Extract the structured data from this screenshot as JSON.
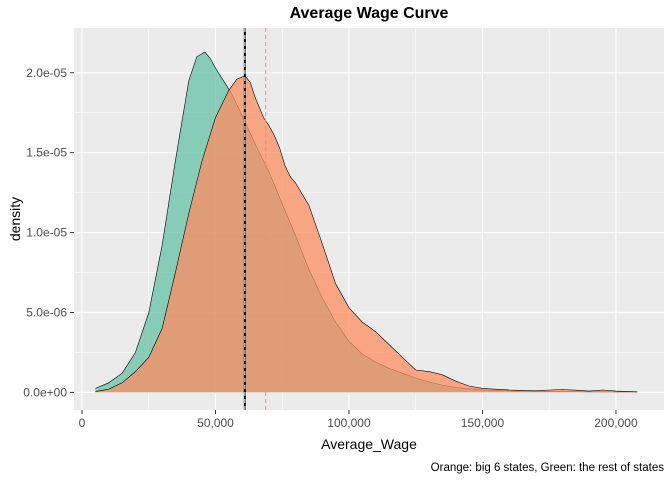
{
  "chart_data": {
    "type": "area",
    "title": "Average Wage Curve",
    "xlabel": "Average_Wage",
    "ylabel": "density",
    "caption": "Orange: big 6 states, Green: the rest of states",
    "xlim": [
      -3000,
      218000
    ],
    "ylim": [
      -1.1e-06,
      2.28e-05
    ],
    "x_ticks": [
      0,
      50000,
      100000,
      150000,
      200000
    ],
    "x_tick_labels": [
      "0",
      "50,000",
      "100,000",
      "150,000",
      "200,000"
    ],
    "y_ticks": [
      0,
      5e-06,
      1e-05,
      1.5e-05,
      2e-05
    ],
    "y_tick_labels": [
      "0.0e+00",
      "5.0e-06",
      "1.0e-05",
      "1.5e-05",
      "2.0e-05"
    ],
    "grid": true,
    "series": [
      {
        "color": "#66c2a5",
        "x": [
          5000,
          10000,
          15000,
          20000,
          25000,
          30000,
          35000,
          40000,
          43000,
          46000,
          48000,
          50000,
          53000,
          56000,
          60000,
          65000,
          70000,
          75000,
          80000,
          85000,
          90000,
          95000,
          100000,
          105000,
          110000,
          115000,
          120000,
          125000,
          130000,
          135000,
          140000,
          150000,
          160000,
          170000,
          180000,
          190000,
          200000,
          208000
        ],
        "y": [
          2.5e-07,
          6e-07,
          1.2e-06,
          2.5e-06,
          5e-06,
          9.2e-06,
          1.45e-05,
          1.95e-05,
          2.1e-05,
          2.13e-05,
          2.09e-05,
          2.03e-05,
          1.95e-05,
          1.87e-05,
          1.73e-05,
          1.55e-05,
          1.38e-05,
          1.18e-05,
          9.8e-06,
          7.7e-06,
          5.9e-06,
          4.4e-06,
          3.2e-06,
          2.4e-06,
          1.9e-06,
          1.5e-06,
          1.2e-06,
          9e-07,
          6.5e-07,
          4.5e-07,
          3e-07,
          1.6e-07,
          1e-07,
          7e-08,
          5e-08,
          4e-08,
          3e-08,
          3e-08
        ]
      },
      {
        "color": "#fc8d62",
        "x": [
          5000,
          10000,
          15000,
          20000,
          25000,
          30000,
          35000,
          40000,
          45000,
          50000,
          55000,
          58000,
          61000,
          63000,
          65000,
          68000,
          70000,
          72000,
          74000,
          76000,
          78000,
          80000,
          85000,
          90000,
          95000,
          100000,
          105000,
          110000,
          115000,
          120000,
          125000,
          130000,
          135000,
          140000,
          145000,
          150000,
          160000,
          170000,
          175000,
          180000,
          185000,
          190000,
          195000,
          200000,
          208000
        ],
        "y": [
          5e-08,
          2e-07,
          6e-07,
          1.3e-06,
          2.2e-06,
          4e-06,
          7.5e-06,
          1.12e-05,
          1.45e-05,
          1.72e-05,
          1.89e-05,
          1.96e-05,
          1.98e-05,
          1.94e-05,
          1.84e-05,
          1.72e-05,
          1.67e-05,
          1.61e-05,
          1.53e-05,
          1.42e-05,
          1.35e-05,
          1.31e-05,
          1.17e-05,
          9.3e-06,
          6.8e-06,
          5.3e-06,
          4.4e-06,
          3.8e-06,
          3e-06,
          2.2e-06,
          1.4e-06,
          1.3e-06,
          1.1e-06,
          7e-07,
          4e-07,
          2.5e-07,
          1.5e-07,
          1e-07,
          1.5e-07,
          1.8e-07,
          1.4e-07,
          8e-08,
          1.5e-07,
          8e-08,
          3e-08
        ]
      }
    ],
    "vlines": [
      {
        "x": 61000,
        "color": "#000000",
        "style": "solid"
      },
      {
        "x": 61000,
        "color": "#ffffff",
        "style": "dashed"
      },
      {
        "x": 68800,
        "color": "#fc8d62",
        "style": "dashed"
      }
    ]
  }
}
